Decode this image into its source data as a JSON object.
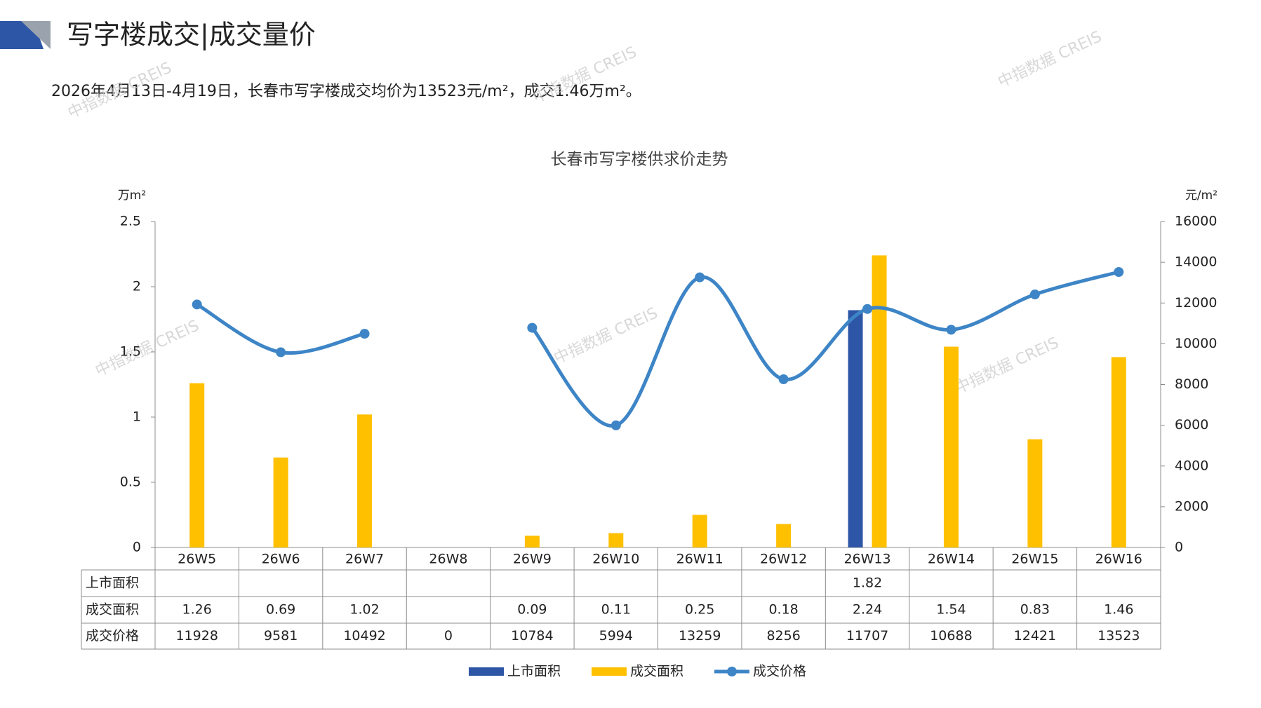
{
  "header": {
    "title": "写字楼成交|成交量价",
    "summary": "2026年4月13日-4月19日，长春市写字楼成交均价为13523元/m²，成交1.46万m²。"
  },
  "watermark": "中指数据 CREIS",
  "chart_data": {
    "type": "combo",
    "title": "长春市写字楼供求价走势",
    "y_label": "万m²",
    "y2_label": "元/m²",
    "categories": [
      "26W5",
      "26W6",
      "26W7",
      "26W8",
      "26W9",
      "26W10",
      "26W11",
      "26W12",
      "26W13",
      "26W14",
      "26W15",
      "26W16"
    ],
    "series": [
      {
        "name": "上市面积",
        "type": "bar",
        "color": "#2e56a6",
        "values": [
          null,
          null,
          null,
          null,
          null,
          null,
          null,
          null,
          1.82,
          null,
          null,
          null
        ]
      },
      {
        "name": "成交面积",
        "type": "bar",
        "color": "#ffc000",
        "values": [
          1.26,
          0.69,
          1.02,
          null,
          0.09,
          0.11,
          0.25,
          0.18,
          2.24,
          1.54,
          0.83,
          1.46
        ]
      },
      {
        "name": "成交价格",
        "type": "line",
        "axis": "y2",
        "color": "#3d85c6",
        "values": [
          11928,
          9581,
          10492,
          null,
          10784,
          5994,
          13259,
          8256,
          11707,
          10688,
          12421,
          13523
        ],
        "value_labels": [
          "11928",
          "9581",
          "10492",
          "0",
          "10784",
          "5994",
          "13259",
          "8256",
          "11707",
          "10688",
          "12421",
          "13523"
        ]
      }
    ],
    "ylim": [
      0,
      2.5
    ],
    "yticks": [
      0,
      0.5,
      1,
      1.5,
      2,
      2.5
    ],
    "y2lim": [
      0,
      16000
    ],
    "y2ticks": [
      0,
      2000,
      4000,
      6000,
      8000,
      10000,
      12000,
      14000,
      16000
    ],
    "grid": false,
    "legend": "bottom"
  }
}
